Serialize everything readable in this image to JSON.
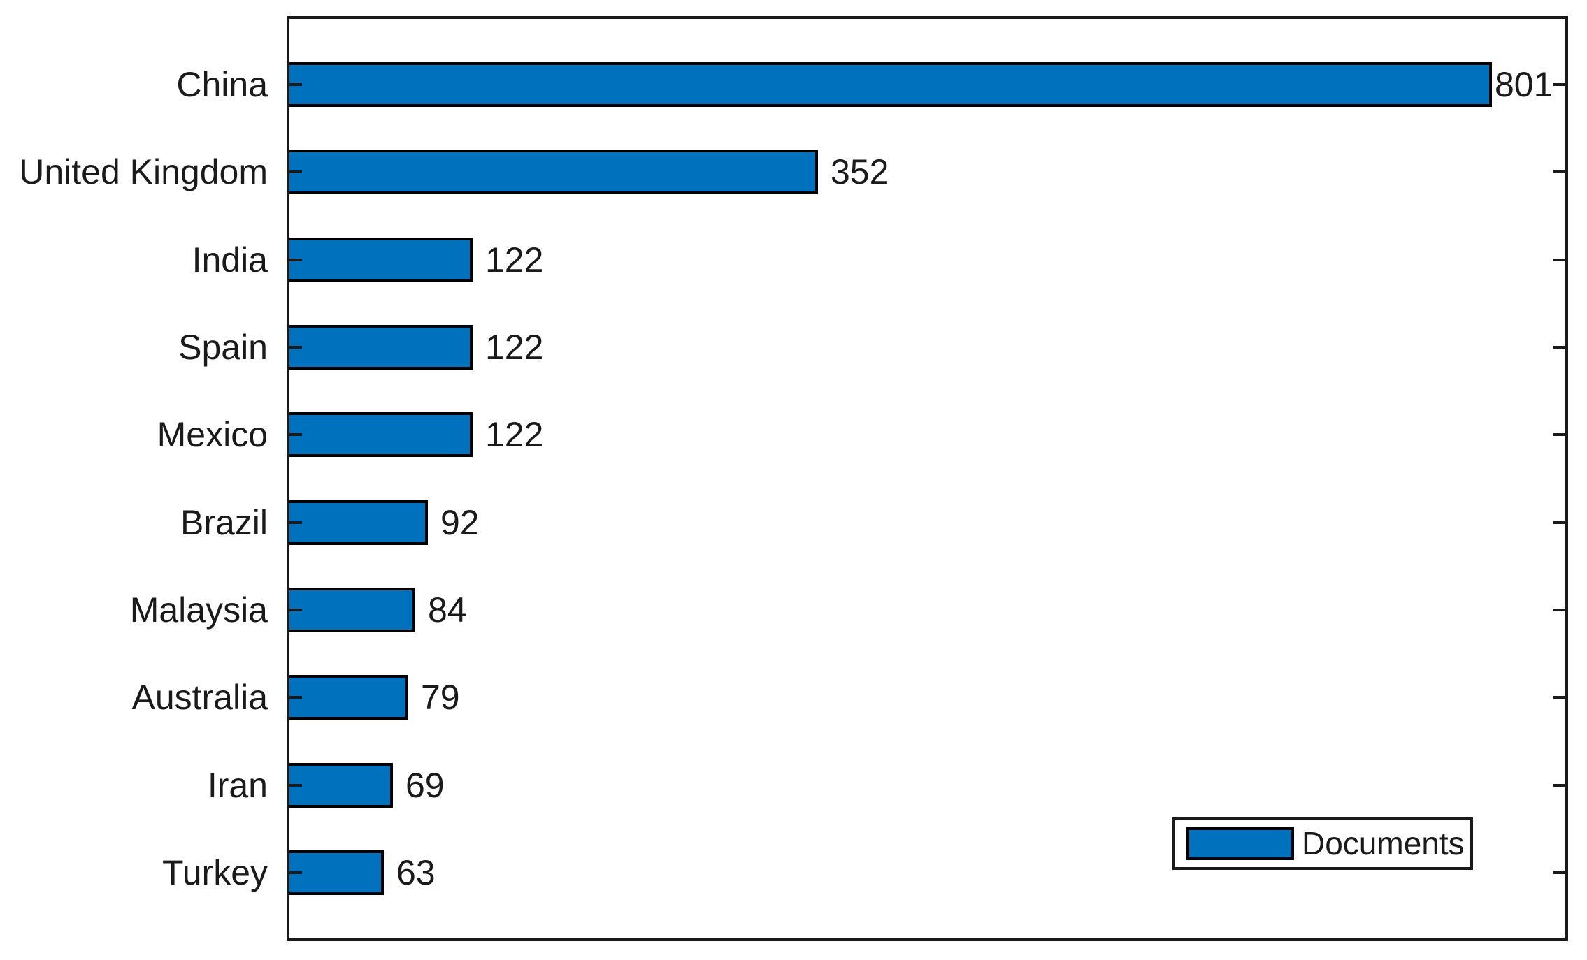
{
  "chart_data": {
    "type": "bar",
    "orientation": "horizontal",
    "title": "",
    "xlabel": "",
    "ylabel": "",
    "categories": [
      "China",
      "United Kingdom",
      "India",
      "Spain",
      "Mexico",
      "Brazil",
      "Malaysia",
      "Australia",
      "Iran",
      "Turkey"
    ],
    "values": [
      801,
      352,
      122,
      122,
      122,
      92,
      84,
      79,
      69,
      63
    ],
    "value_labels": [
      "801",
      "352",
      "122",
      "122",
      "122",
      "92",
      "84",
      "79",
      "69",
      "63"
    ],
    "series": [
      {
        "name": "Documents",
        "values": [
          801,
          352,
          122,
          122,
          122,
          92,
          84,
          79,
          69,
          63
        ]
      }
    ],
    "xlim": [
      0,
      850
    ],
    "bar_width_fraction": 0.5,
    "grid": false,
    "box": true,
    "tick_dir": "in",
    "legend": {
      "position": "bottom-right",
      "entries": [
        "Documents"
      ]
    },
    "colors": {
      "bar": "#0072BD",
      "bar_edge": "#000000",
      "axis": "#1a1a1a",
      "text": "#1a1a1a",
      "background": "#ffffff"
    }
  }
}
